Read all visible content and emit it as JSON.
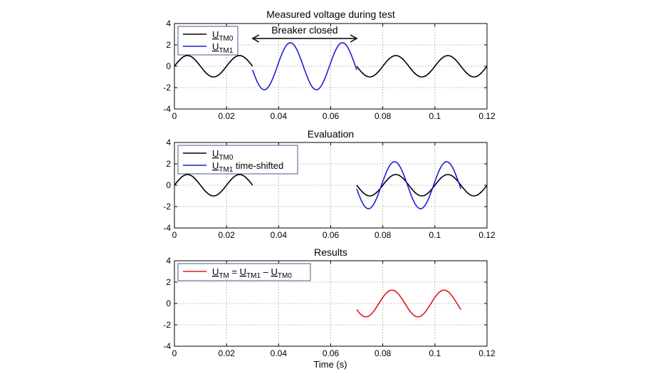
{
  "figure": {
    "xlabel": "Time (s)",
    "colors": {
      "black": "#000000",
      "blue": "#1f1fd6",
      "red": "#e8141b",
      "grid": "#b0b0b0",
      "axis": "#000000"
    }
  },
  "chart_data": [
    {
      "type": "line",
      "title": "Measured voltage during test",
      "xlabel": "",
      "ylabel": "",
      "xlim": [
        0,
        0.12
      ],
      "ylim": [
        -4,
        4
      ],
      "x_ticks": [
        "0",
        "0.02",
        "0.04",
        "0.06",
        "0.08",
        "0.1",
        "0.12"
      ],
      "y_ticks": [
        "4",
        "2",
        "0",
        "-2",
        "-4"
      ],
      "grid": true,
      "legend": "top-left",
      "annotation": {
        "text": "Breaker closed",
        "x_from": 0.03,
        "x_to": 0.07,
        "y": 2.6
      },
      "series": [
        {
          "name": "U_TM0",
          "label_main": "U",
          "label_sub": "TM0",
          "label_rest": "",
          "color": "black",
          "segments": [
            {
              "x_from": 0,
              "x_to": 0.03,
              "amplitude": 1.0,
              "freq": 50,
              "phase_t0": 0
            },
            {
              "x_from": 0.07,
              "x_to": 0.12,
              "amplitude": 1.0,
              "freq": 50,
              "phase_t0": 0
            }
          ]
        },
        {
          "name": "U_TM1",
          "label_main": "U",
          "label_sub": "TM1",
          "label_rest": "",
          "color": "blue",
          "segments": [
            {
              "x_from": 0.03,
              "x_to": 0.07,
              "amplitude": 2.2,
              "freq": 50,
              "phase_t0": 0.0395
            }
          ]
        }
      ]
    },
    {
      "type": "line",
      "title": "Evaluation",
      "xlabel": "",
      "ylabel": "",
      "xlim": [
        0,
        0.12
      ],
      "ylim": [
        -4,
        4
      ],
      "x_ticks": [
        "0",
        "0.02",
        "0.04",
        "0.06",
        "0.08",
        "0.1",
        "0.12"
      ],
      "y_ticks": [
        "4",
        "2",
        "0",
        "-2",
        "-4"
      ],
      "grid": true,
      "legend": "top-left",
      "series": [
        {
          "name": "U_TM0",
          "label_main": "U",
          "label_sub": "TM0",
          "label_rest": "",
          "color": "black",
          "segments": [
            {
              "x_from": 0,
              "x_to": 0.03,
              "amplitude": 1.0,
              "freq": 50,
              "phase_t0": 0
            },
            {
              "x_from": 0.07,
              "x_to": 0.12,
              "amplitude": 1.0,
              "freq": 50,
              "phase_t0": 0
            }
          ]
        },
        {
          "name": "U_TM1 time-shifted",
          "label_main": "U",
          "label_sub": "TM1",
          "label_rest": " time-shifted",
          "color": "blue",
          "segments": [
            {
              "x_from": 0.07,
              "x_to": 0.11,
              "amplitude": 2.2,
              "freq": 50,
              "phase_t0": 0.0795
            }
          ]
        }
      ]
    },
    {
      "type": "line",
      "title": "Results",
      "xlabel": "Time (s)",
      "ylabel": "",
      "xlim": [
        0,
        0.12
      ],
      "ylim": [
        -4,
        4
      ],
      "x_ticks": [
        "0",
        "0.02",
        "0.04",
        "0.06",
        "0.08",
        "0.1",
        "0.12"
      ],
      "y_ticks": [
        "4",
        "2",
        "0",
        "-2",
        "-4"
      ],
      "grid": true,
      "legend": "top-left",
      "series": [
        {
          "name": "U_TM = U_TM1 - U_TM0",
          "label_main": "U",
          "label_sub": "TM",
          "label_rest": " = ",
          "label_main2": "U",
          "label_sub2": "TM1",
          "label_rest2": " – ",
          "label_main3": "U",
          "label_sub3": "TM0",
          "color": "red",
          "segments": [
            {
              "x_from": 0.07,
              "x_to": 0.11,
              "amplitude": 1.25,
              "freq": 50,
              "phase_t0": 0.0785
            }
          ]
        }
      ]
    }
  ]
}
